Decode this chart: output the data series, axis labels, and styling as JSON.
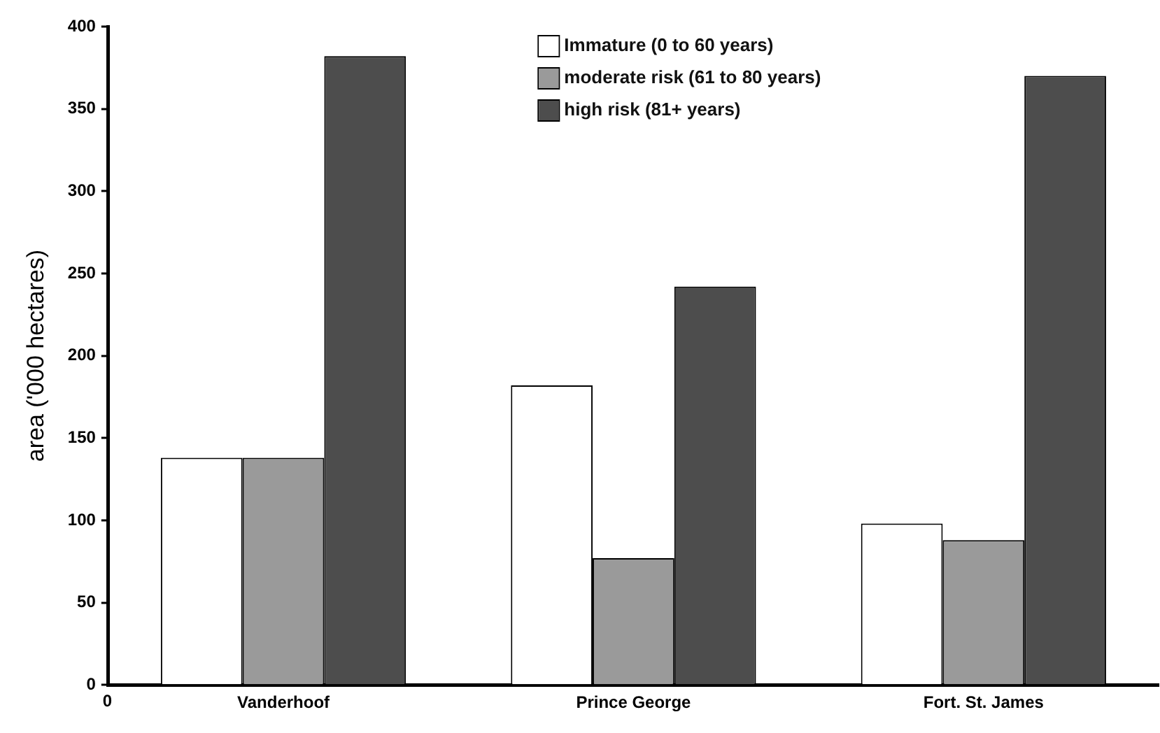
{
  "chart_data": {
    "type": "bar",
    "ylabel": "area ('000 hectares)",
    "categories": [
      "Vanderhoof",
      "Prince George",
      "Fort. St. James"
    ],
    "series": [
      {
        "name": "Immature (0 to 60 years)",
        "color": "#ffffff",
        "values": [
          138,
          182,
          98
        ]
      },
      {
        "name": "moderate risk (61 to 80 years)",
        "color": "#9a9a9a",
        "values": [
          138,
          77,
          88
        ]
      },
      {
        "name": "high risk (81+ years)",
        "color": "#4d4d4d",
        "values": [
          382,
          242,
          370
        ]
      }
    ],
    "ylim": [
      0,
      400
    ],
    "yticks": [
      0,
      50,
      100,
      150,
      200,
      250,
      300,
      350,
      400
    ],
    "grid": false,
    "legend": "top right",
    "annotations": [
      "0"
    ]
  }
}
